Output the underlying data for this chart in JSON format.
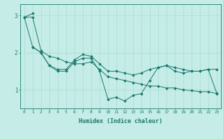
{
  "xlabel": "Humidex (Indice chaleur)",
  "background_color": "#c5ece6",
  "line_color": "#1a7a6e",
  "grid_color": "#a8ddd6",
  "xlim": [
    -0.5,
    23.5
  ],
  "ylim": [
    0.5,
    3.3
  ],
  "yticks": [
    1,
    2,
    3
  ],
  "xticks": [
    0,
    1,
    2,
    3,
    4,
    5,
    6,
    7,
    8,
    9,
    10,
    11,
    12,
    13,
    14,
    15,
    16,
    17,
    18,
    19,
    20,
    21,
    22,
    23
  ],
  "series": [
    {
      "x": [
        0,
        1,
        2,
        3,
        4,
        5,
        6,
        7,
        8,
        9,
        10,
        11,
        12,
        13,
        14,
        15,
        16,
        17,
        18,
        19,
        20,
        21,
        22,
        23
      ],
      "y": [
        2.95,
        3.05,
        null,
        null,
        null,
        null,
        null,
        null,
        null,
        null,
        null,
        null,
        null,
        null,
        null,
        null,
        null,
        null,
        null,
        null,
        null,
        null,
        null,
        null
      ]
    },
    {
      "x": [
        1,
        2,
        3,
        4,
        5,
        6,
        7,
        8,
        9,
        10,
        11,
        12,
        13,
        14,
        15,
        16,
        17,
        18,
        19,
        20,
        21,
        22,
        23
      ],
      "y": [
        2.15,
        2.0,
        1.65,
        1.5,
        1.5,
        1.75,
        1.85,
        1.85,
        1.5,
        0.75,
        0.8,
        0.7,
        0.85,
        0.9,
        1.25,
        1.6,
        1.65,
        1.5,
        1.45,
        1.5,
        1.5,
        1.55,
        0.92
      ]
    },
    {
      "x": [
        0,
        1,
        2,
        3,
        4,
        5,
        6,
        7,
        8,
        9,
        10,
        11,
        12,
        13,
        14,
        15,
        16,
        17,
        18,
        19,
        20,
        21,
        22,
        23
      ],
      "y": [
        2.95,
        2.15,
        2.0,
        1.65,
        1.55,
        1.55,
        1.8,
        1.95,
        1.9,
        1.7,
        1.5,
        1.5,
        1.45,
        1.4,
        1.45,
        1.55,
        1.6,
        1.65,
        1.6,
        1.55,
        1.5,
        1.5,
        1.55,
        1.55
      ]
    },
    {
      "x": [
        0,
        1,
        2,
        3,
        4,
        5,
        6,
        7,
        8,
        9,
        10,
        11,
        12,
        13,
        14,
        15,
        16,
        17,
        18,
        19,
        20,
        21,
        22,
        23
      ],
      "y": [
        2.95,
        2.95,
        2.05,
        1.9,
        1.85,
        1.75,
        1.7,
        1.7,
        1.75,
        1.55,
        1.35,
        1.3,
        1.25,
        1.2,
        1.15,
        1.1,
        1.1,
        1.05,
        1.05,
        1.0,
        0.98,
        0.95,
        0.95,
        0.9
      ]
    }
  ]
}
